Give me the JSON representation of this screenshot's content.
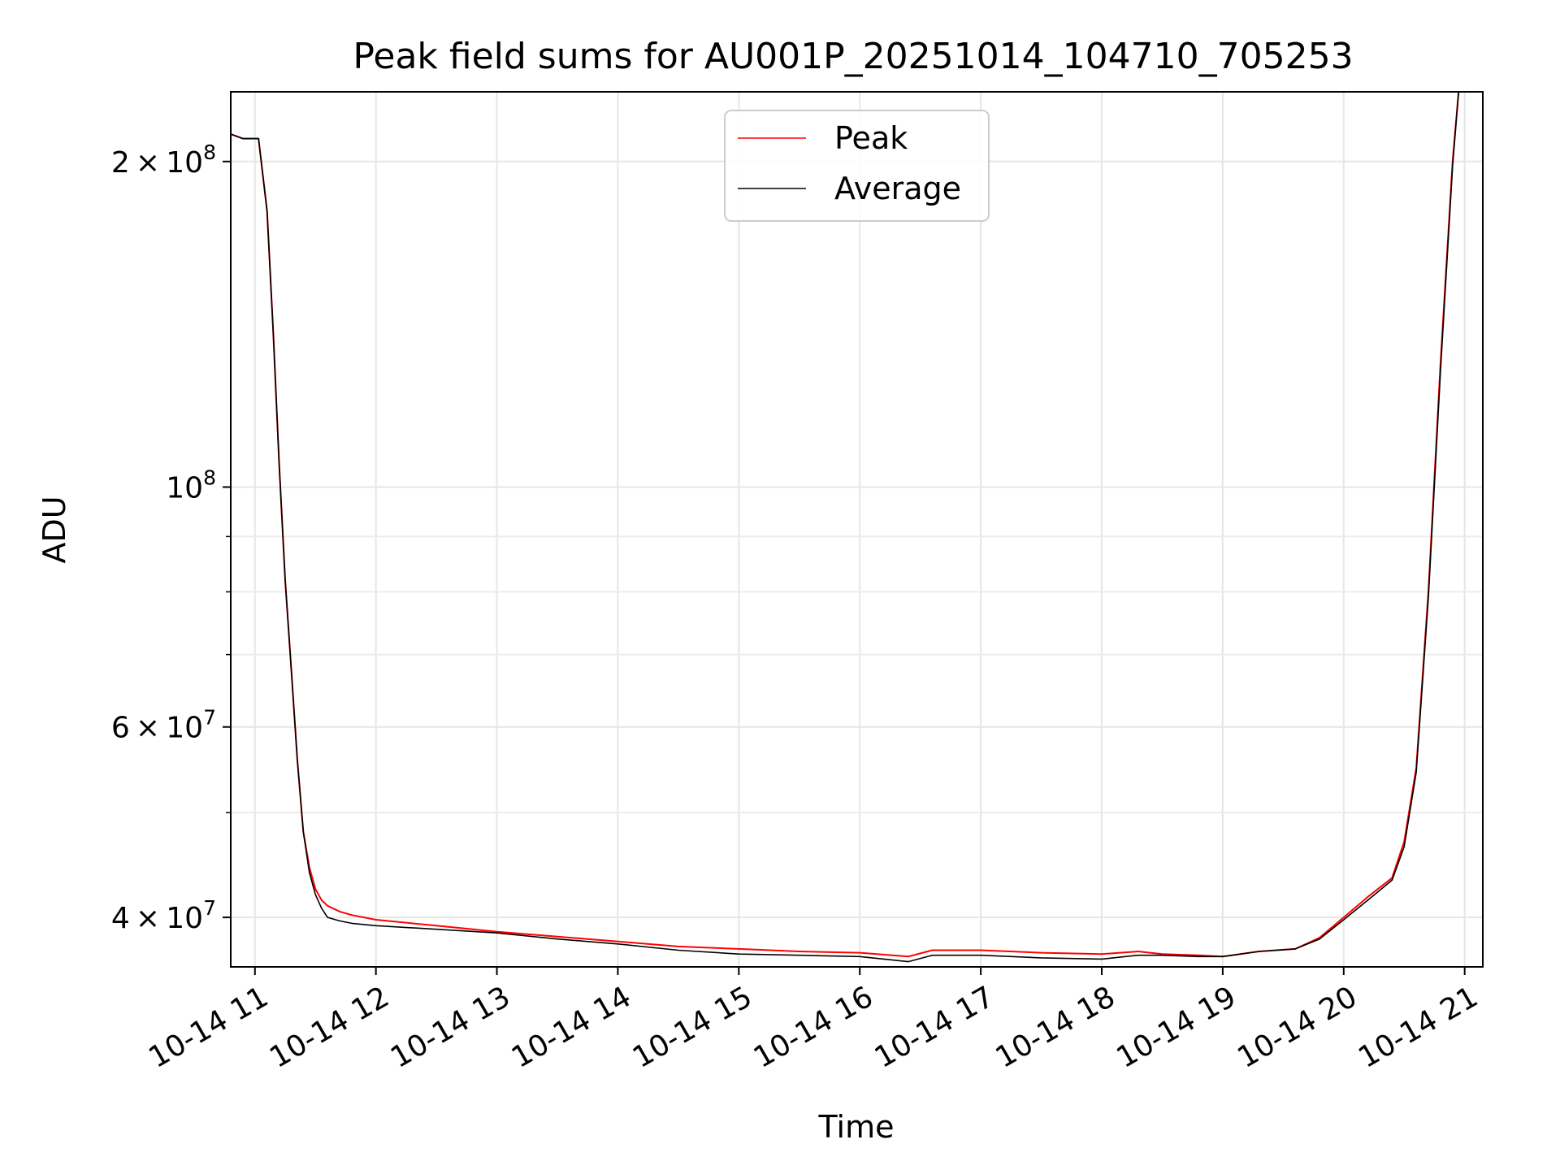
{
  "chart_data": {
    "type": "line",
    "title": "Peak field sums for AU001P_20251014_104710_705253",
    "xlabel": "Time",
    "ylabel": "ADU",
    "yscale": "log",
    "ylim": [
      36000000,
      232000000
    ],
    "xlim": [
      10.8,
      21.15
    ],
    "grid": true,
    "legend_position": "top-center",
    "x_ticks": [
      {
        "value": 11,
        "label": "10-14 11"
      },
      {
        "value": 12,
        "label": "10-14 12"
      },
      {
        "value": 13,
        "label": "10-14 13"
      },
      {
        "value": 14,
        "label": "10-14 14"
      },
      {
        "value": 15,
        "label": "10-14 15"
      },
      {
        "value": 16,
        "label": "10-14 16"
      },
      {
        "value": 17,
        "label": "10-14 17"
      },
      {
        "value": 18,
        "label": "10-14 18"
      },
      {
        "value": 19,
        "label": "10-14 19"
      },
      {
        "value": 20,
        "label": "10-14 20"
      },
      {
        "value": 21,
        "label": "10-14 21"
      }
    ],
    "y_major_ticks": [
      {
        "value": 40000000,
        "mant": "4",
        "exp": "7"
      },
      {
        "value": 60000000,
        "mant": "6",
        "exp": "7"
      },
      {
        "value": 100000000,
        "mant": "",
        "exp": "8"
      },
      {
        "value": 200000000,
        "mant": "2",
        "exp": "8"
      }
    ],
    "y_minor_ticks": [
      50000000,
      70000000,
      80000000,
      90000000
    ],
    "tick_separator": "×",
    "tick_base": "10",
    "series": [
      {
        "name": "Peak",
        "color": "#ff0000",
        "x": [
          10.8,
          10.85,
          10.9,
          10.95,
          11.03,
          11.1,
          11.15,
          11.2,
          11.25,
          11.3,
          11.35,
          11.4,
          11.45,
          11.5,
          11.55,
          11.6,
          11.7,
          11.8,
          12.0,
          12.5,
          13.0,
          13.5,
          14.0,
          14.5,
          15.0,
          15.5,
          16.0,
          16.4,
          16.6,
          17.0,
          17.5,
          18.0,
          18.3,
          18.5,
          18.8,
          19.0,
          19.3,
          19.6,
          19.8,
          20.0,
          20.2,
          20.4,
          20.5,
          20.6,
          20.7,
          20.8,
          20.9,
          20.95
        ],
        "values": [
          212000000,
          211000000,
          210000000,
          210000000,
          210000000,
          180000000,
          140000000,
          105000000,
          82000000,
          68000000,
          56000000,
          48000000,
          44500000,
          42500000,
          41500000,
          41000000,
          40500000,
          40200000,
          39800000,
          39300000,
          38800000,
          38400000,
          38000000,
          37600000,
          37400000,
          37200000,
          37100000,
          36800000,
          37300000,
          37300000,
          37100000,
          37000000,
          37200000,
          37000000,
          36900000,
          36800000,
          37200000,
          37400000,
          38300000,
          40000000,
          41800000,
          43500000,
          47000000,
          55000000,
          80000000,
          130000000,
          200000000,
          232000000
        ]
      },
      {
        "name": "Average",
        "color": "#000000",
        "x": [
          10.8,
          10.85,
          10.9,
          10.95,
          11.03,
          11.1,
          11.15,
          11.2,
          11.25,
          11.3,
          11.35,
          11.4,
          11.45,
          11.5,
          11.55,
          11.6,
          11.7,
          11.8,
          12.0,
          12.5,
          13.0,
          13.5,
          14.0,
          14.5,
          15.0,
          15.5,
          16.0,
          16.4,
          16.6,
          17.0,
          17.5,
          18.0,
          18.3,
          18.5,
          18.8,
          19.0,
          19.3,
          19.6,
          19.8,
          20.0,
          20.2,
          20.4,
          20.5,
          20.6,
          20.7,
          20.8,
          20.9,
          20.95
        ],
        "values": [
          212000000,
          211000000,
          210000000,
          210000000,
          210000000,
          180000000,
          140000000,
          105000000,
          82000000,
          68000000,
          56000000,
          48000000,
          44000000,
          42000000,
          40800000,
          40000000,
          39700000,
          39500000,
          39300000,
          39000000,
          38700000,
          38200000,
          37800000,
          37300000,
          37000000,
          36900000,
          36800000,
          36400000,
          36900000,
          36900000,
          36700000,
          36600000,
          36900000,
          36900000,
          36800000,
          36800000,
          37200000,
          37400000,
          38200000,
          39800000,
          41500000,
          43300000,
          46500000,
          54500000,
          79000000,
          128000000,
          198000000,
          232000000
        ]
      }
    ]
  }
}
